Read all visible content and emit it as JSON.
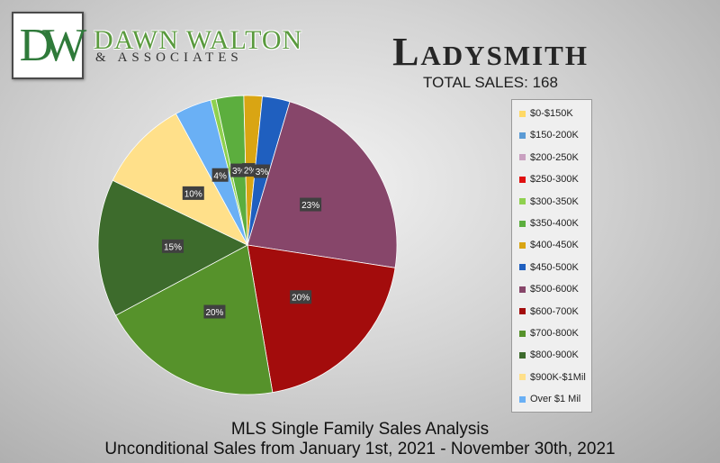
{
  "header": {
    "logo_mark": "DW",
    "brand_name": "DAWN WALTON",
    "brand_sub": "& ASSOCIATES",
    "title": "Ladysmith",
    "subtitle": "TOTAL SALES: 168"
  },
  "footer": {
    "line1": "MLS Single Family Sales Analysis",
    "line2": "Unconditional Sales from January 1st, 2021 - November 30th, 2021"
  },
  "chart_data": {
    "type": "pie",
    "categories": [
      "$0-$150K",
      "$150-200K",
      "$200-250K",
      "$250-300K",
      "$300-350K",
      "$350-400K",
      "$400-450K",
      "$450-500K",
      "$500-600K",
      "$600-700K",
      "$700-800K",
      "$800-900K",
      "$900K-$1Mil",
      "Over $1 Mil"
    ],
    "values": [
      0,
      0,
      0,
      0,
      0.6,
      3,
      2,
      3,
      23,
      20,
      20,
      15,
      10,
      4
    ],
    "data_labels": [
      "",
      "",
      "",
      "",
      "",
      "3%",
      "2%",
      "3%",
      "23%",
      "20%",
      "20%",
      "15%",
      "10%",
      "4%"
    ],
    "colors": [
      "#ffd966",
      "#5b9bd5",
      "#c9a0c0",
      "#e01010",
      "#8fd14f",
      "#5cae3e",
      "#d9a513",
      "#1f5fbf",
      "#87466a",
      "#a30c0c",
      "#56922b",
      "#3d6b2c",
      "#ffe08a",
      "#6ab0f5"
    ],
    "legend_position": "right"
  }
}
